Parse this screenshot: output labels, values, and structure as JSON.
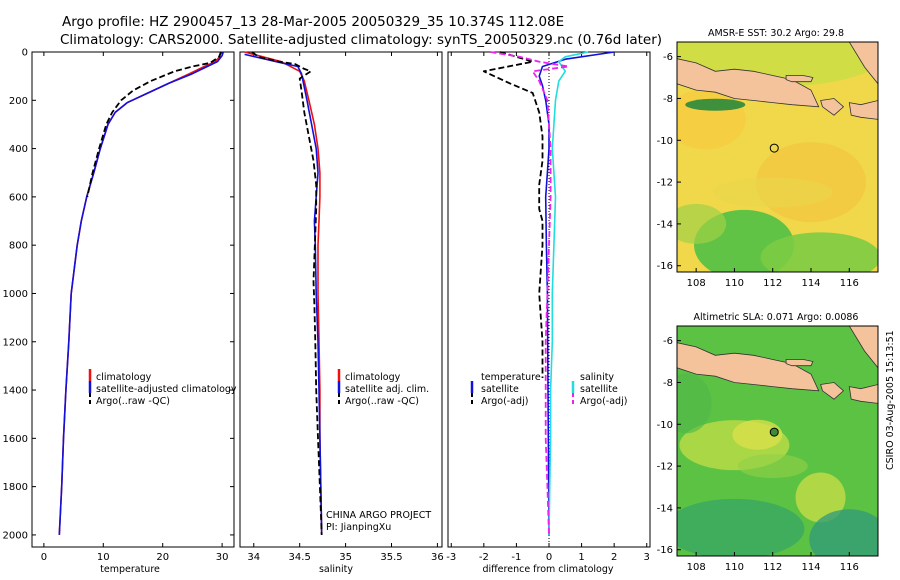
{
  "title": {
    "line1": "Argo profile: HZ 2900457_13 28-Mar-2005 20050329_35 10.374S 112.08E",
    "line2": "Climatology: CARS2000. Satellite-adjusted climatology: synTS_20050329.nc (0.76d later)"
  },
  "credit": {
    "project": "CHINA ARGO PROJECT",
    "pi": "PI: JianpingXu"
  },
  "timestamp": "CSIRO 03-Aug-2005 15:13:51",
  "colors": {
    "climatology": "#ee1111",
    "satellite": "#1111dd",
    "argo": "#000000",
    "salinity": "#22dddd",
    "argo_sal": "#ee22ee",
    "land": "#f4c39c"
  },
  "chart_data": [
    {
      "type": "line",
      "id": "temperature",
      "xlabel": "temperature",
      "ylabel": "",
      "xlim": [
        -2,
        32
      ],
      "ylim": [
        2050,
        0
      ],
      "xticks": [
        0,
        10,
        20,
        30
      ],
      "yticks": [
        0,
        200,
        400,
        600,
        800,
        1000,
        1200,
        1400,
        1600,
        1800,
        2000
      ],
      "legend": [
        "climatology",
        "satellite-adjusted climatology",
        "Argo(..raw -QC)"
      ],
      "series": [
        {
          "name": "climatology",
          "style": "solid",
          "color": "#ee1111",
          "points": [
            [
              29.8,
              0
            ],
            [
              29.6,
              20
            ],
            [
              28.8,
              40
            ],
            [
              27,
              60
            ],
            [
              24.5,
              90
            ],
            [
              21,
              130
            ],
            [
              17.5,
              170
            ],
            [
              14,
              210
            ],
            [
              12,
              250
            ],
            [
              10.8,
              300
            ],
            [
              9.5,
              400
            ],
            [
              8.4,
              500
            ],
            [
              7.2,
              600
            ],
            [
              6.3,
              700
            ],
            [
              5.6,
              800
            ],
            [
              5.1,
              900
            ],
            [
              4.6,
              1000
            ],
            [
              4.2,
              1200
            ],
            [
              3.7,
              1400
            ],
            [
              3.3,
              1600
            ],
            [
              3,
              1800
            ],
            [
              2.6,
              2000
            ]
          ]
        },
        {
          "name": "satellite-adjusted climatology",
          "style": "solid",
          "color": "#1111dd",
          "points": [
            [
              30.2,
              0
            ],
            [
              30,
              15
            ],
            [
              29.2,
              40
            ],
            [
              27.5,
              60
            ],
            [
              25,
              90
            ],
            [
              21,
              130
            ],
            [
              17.5,
              170
            ],
            [
              14,
              210
            ],
            [
              12,
              250
            ],
            [
              10.8,
              300
            ],
            [
              9.5,
              400
            ],
            [
              8.4,
              500
            ],
            [
              7.2,
              600
            ],
            [
              6.3,
              700
            ],
            [
              5.6,
              800
            ],
            [
              5.1,
              900
            ],
            [
              4.6,
              1000
            ],
            [
              4.2,
              1200
            ],
            [
              3.7,
              1400
            ],
            [
              3.3,
              1600
            ],
            [
              3,
              1800
            ],
            [
              2.6,
              2000
            ]
          ]
        },
        {
          "name": "Argo(..raw -QC)",
          "style": "dashed",
          "color": "#000000",
          "points": [
            [
              29.8,
              0
            ],
            [
              29.5,
              20
            ],
            [
              28,
              45
            ],
            [
              25,
              60
            ],
            [
              22,
              80
            ],
            [
              18,
              120
            ],
            [
              15,
              160
            ],
            [
              13,
              200
            ],
            [
              11.5,
              250
            ],
            [
              10.5,
              300
            ],
            [
              9.3,
              400
            ],
            [
              8.2,
              500
            ],
            [
              7.3,
              600
            ]
          ]
        }
      ]
    },
    {
      "type": "line",
      "id": "salinity",
      "xlabel": "salinity",
      "ylabel": "",
      "xlim": [
        33.85,
        36.05
      ],
      "ylim": [
        2050,
        0
      ],
      "xticks": [
        34,
        34.5,
        35,
        35.5,
        36
      ],
      "yticks": [],
      "legend": [
        "climatology",
        "satellite adj. clim.",
        "Argo(..raw -QC)"
      ],
      "series": [
        {
          "name": "climatology",
          "style": "solid",
          "color": "#ee1111",
          "points": [
            [
              33.9,
              0
            ],
            [
              34.3,
              40
            ],
            [
              34.5,
              80
            ],
            [
              34.55,
              120
            ],
            [
              34.6,
              200
            ],
            [
              34.66,
              300
            ],
            [
              34.7,
              400
            ],
            [
              34.72,
              500
            ],
            [
              34.72,
              600
            ],
            [
              34.71,
              700
            ],
            [
              34.7,
              800
            ],
            [
              34.7,
              1000
            ],
            [
              34.71,
              1200
            ],
            [
              34.72,
              1400
            ],
            [
              34.72,
              1600
            ],
            [
              34.73,
              1800
            ],
            [
              34.74,
              2000
            ]
          ]
        },
        {
          "name": "satellite adj. clim.",
          "style": "solid",
          "color": "#1111dd",
          "points": [
            [
              33.9,
              10
            ],
            [
              34.3,
              45
            ],
            [
              34.48,
              60
            ],
            [
              34.52,
              90
            ],
            [
              34.58,
              200
            ],
            [
              34.63,
              300
            ],
            [
              34.68,
              400
            ],
            [
              34.7,
              500
            ],
            [
              34.68,
              600
            ],
            [
              34.66,
              700
            ],
            [
              34.67,
              800
            ],
            [
              34.68,
              1000
            ],
            [
              34.7,
              1200
            ],
            [
              34.71,
              1400
            ],
            [
              34.72,
              1600
            ],
            [
              34.73,
              1800
            ],
            [
              34.74,
              2000
            ]
          ]
        },
        {
          "name": "Argo(..raw -QC)",
          "style": "dashed",
          "color": "#000000",
          "points": [
            [
              33.98,
              0
            ],
            [
              34.05,
              20
            ],
            [
              34.28,
              40
            ],
            [
              34.45,
              50
            ],
            [
              34.55,
              70
            ],
            [
              34.62,
              80
            ],
            [
              34.5,
              110
            ],
            [
              34.52,
              160
            ],
            [
              34.55,
              250
            ],
            [
              34.6,
              350
            ],
            [
              34.65,
              450
            ],
            [
              34.68,
              550
            ],
            [
              34.68,
              650
            ],
            [
              34.67,
              750
            ],
            [
              34.66,
              850
            ],
            [
              34.65,
              950
            ],
            [
              34.66,
              1050
            ],
            [
              34.67,
              1200
            ],
            [
              34.68,
              1400
            ],
            [
              34.7,
              1600
            ],
            [
              34.72,
              1800
            ],
            [
              34.74,
              2000
            ]
          ]
        }
      ]
    },
    {
      "type": "line",
      "id": "difference",
      "xlabel": "difference from climatology",
      "ylabel": "",
      "xlim": [
        -3.1,
        3.1
      ],
      "ylim": [
        2050,
        0
      ],
      "xticks": [
        -3,
        -2,
        -1,
        0,
        1,
        2,
        3
      ],
      "yticks": [],
      "legend_left": [
        "temperature",
        "satellite",
        "Argo(-adj)"
      ],
      "legend_right": [
        "salinity",
        "satellite",
        "Argo(-adj)"
      ],
      "series": [
        {
          "name": "temperature satellite",
          "style": "solid",
          "color": "#1111dd",
          "points": [
            [
              2,
              0
            ],
            [
              0.5,
              30
            ],
            [
              -0.2,
              60
            ],
            [
              -0.3,
              100
            ],
            [
              -0.2,
              140
            ],
            [
              -0.1,
              200
            ],
            [
              0,
              300
            ],
            [
              0,
              400
            ],
            [
              -0.05,
              500
            ],
            [
              -0.1,
              600
            ],
            [
              -0.08,
              800
            ],
            [
              -0.05,
              1000
            ],
            [
              -0.04,
              1200
            ],
            [
              -0.03,
              1400
            ],
            [
              -0.02,
              1600
            ],
            [
              -0.01,
              1800
            ],
            [
              0,
              2000
            ]
          ]
        },
        {
          "name": "temperature Argo(-adj)",
          "style": "dashed",
          "color": "#000000",
          "points": [
            [
              -1.5,
              0
            ],
            [
              -1,
              20
            ],
            [
              -0.5,
              40
            ],
            [
              -2,
              80
            ],
            [
              -1.2,
              130
            ],
            [
              -0.5,
              170
            ],
            [
              -0.3,
              250
            ],
            [
              -0.2,
              350
            ],
            [
              -0.2,
              450
            ],
            [
              -0.3,
              550
            ],
            [
              -0.3,
              650
            ],
            [
              -0.2,
              700
            ],
            [
              -0.2,
              800
            ],
            [
              -0.3,
              1000
            ],
            [
              -0.2,
              1200
            ],
            [
              -0.2,
              1350
            ]
          ]
        },
        {
          "name": "salinity satellite",
          "style": "solid",
          "color": "#22dddd",
          "points": [
            [
              1.2,
              0
            ],
            [
              0.5,
              20
            ],
            [
              0.3,
              40
            ],
            [
              0.5,
              80
            ],
            [
              0.3,
              120
            ],
            [
              0.2,
              200
            ],
            [
              0.15,
              300
            ],
            [
              0.1,
              400
            ],
            [
              0.15,
              500
            ],
            [
              0.2,
              600
            ],
            [
              0.15,
              800
            ],
            [
              0.1,
              1000
            ],
            [
              0.1,
              1200
            ],
            [
              0.05,
              1400
            ],
            [
              0.05,
              1600
            ],
            [
              0.02,
              1800
            ],
            [
              0,
              2000
            ]
          ]
        },
        {
          "name": "salinity Argo(-adj)",
          "style": "dashed",
          "color": "#ee22ee",
          "points": [
            [
              -1.8,
              0
            ],
            [
              -0.9,
              20
            ],
            [
              -0.3,
              40
            ],
            [
              0.6,
              60
            ],
            [
              -0.5,
              80
            ],
            [
              -0.3,
              120
            ],
            [
              -0.05,
              200
            ],
            [
              0,
              300
            ],
            [
              0.05,
              400
            ],
            [
              0.05,
              500
            ],
            [
              0.05,
              600
            ],
            [
              0,
              800
            ],
            [
              -0.05,
              1000
            ],
            [
              -0.1,
              1200
            ],
            [
              -0.1,
              1400
            ],
            [
              -0.1,
              1600
            ],
            [
              -0.05,
              1800
            ],
            [
              0,
              2000
            ]
          ]
        }
      ]
    },
    {
      "type": "heatmap",
      "id": "sst-map",
      "title": "AMSR-E SST: 30.2 Argo: 29.8",
      "xlim": [
        107,
        117.5
      ],
      "ylim": [
        -16.3,
        -5.3
      ],
      "xticks": [
        108,
        110,
        112,
        114,
        116
      ],
      "yticks": [
        -6,
        -8,
        -10,
        -12,
        -14,
        -16
      ],
      "float_position": [
        112.08,
        -10.374
      ]
    },
    {
      "type": "heatmap",
      "id": "sla-map",
      "title": "Altimetric SLA: 0.071 Argo: 0.0086",
      "xlim": [
        107,
        117.5
      ],
      "ylim": [
        -16.3,
        -5.3
      ],
      "xticks": [
        108,
        110,
        112,
        114,
        116
      ],
      "yticks": [
        -6,
        -8,
        -10,
        -12,
        -14,
        -16
      ],
      "float_position": [
        112.08,
        -10.374
      ]
    }
  ]
}
